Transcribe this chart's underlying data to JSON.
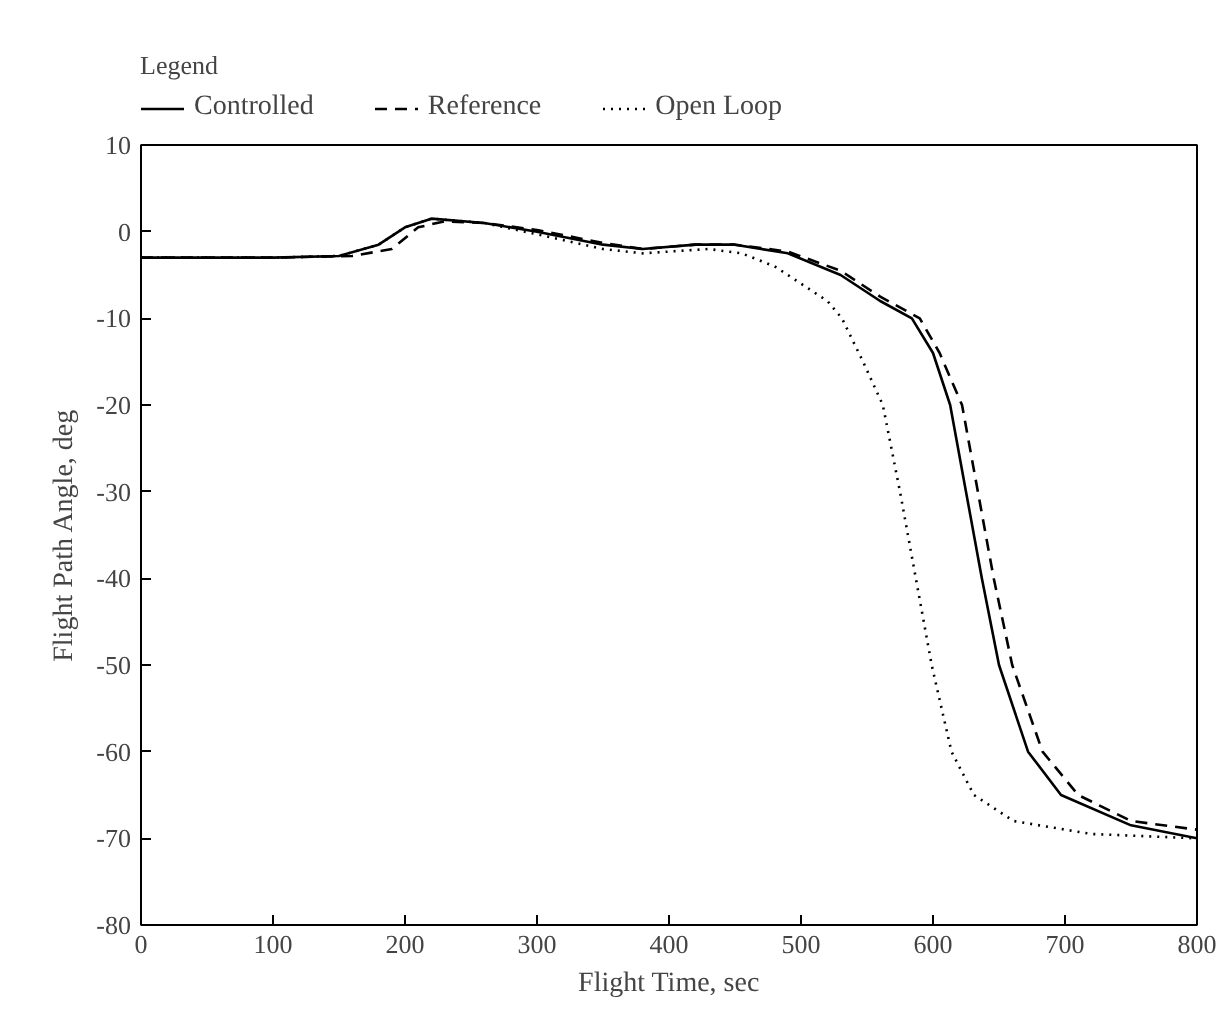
{
  "chart_data": {
    "type": "line",
    "xlabel": "Flight Time, sec",
    "ylabel": "Flight Path Angle, deg",
    "legend_title": "Legend",
    "legend": "top left",
    "xlim": [
      0,
      800
    ],
    "ylim": [
      -80,
      10
    ],
    "xticks": [
      0,
      100,
      200,
      300,
      400,
      500,
      600,
      700,
      800
    ],
    "yticks": [
      10,
      0,
      -10,
      -20,
      -30,
      -40,
      -50,
      -60,
      -70,
      -80
    ],
    "grid": false,
    "series": [
      {
        "name": "Controlled",
        "color": "#000000",
        "line_style": "solid",
        "x": [
          0,
          100,
          150,
          180,
          200,
          220,
          260,
          300,
          350,
          380,
          420,
          450,
          490,
          530,
          560,
          584,
          600,
          613,
          625,
          637,
          650,
          672,
          697,
          750,
          800
        ],
        "values": [
          -3,
          -3,
          -2.8,
          -1.5,
          0.5,
          1.5,
          1,
          0,
          -1.5,
          -2,
          -1.5,
          -1.5,
          -2.5,
          -5,
          -8,
          -10,
          -14,
          -20,
          -30,
          -40,
          -50,
          -60,
          -65,
          -68.5,
          -70
        ]
      },
      {
        "name": "Reference",
        "color": "#000000",
        "line_style": "dashed",
        "x": [
          0,
          100,
          160,
          190,
          210,
          230,
          260,
          300,
          350,
          380,
          420,
          450,
          490,
          530,
          560,
          590,
          605,
          622,
          634,
          646,
          660,
          683,
          710,
          750,
          800
        ],
        "values": [
          -3,
          -3,
          -2.8,
          -2,
          0.5,
          1.2,
          1,
          0.2,
          -1.3,
          -2,
          -1.5,
          -1.5,
          -2.3,
          -4.5,
          -7.5,
          -10,
          -14,
          -20,
          -30,
          -40,
          -50,
          -60,
          -65,
          -68,
          -69
        ]
      },
      {
        "name": "Open Loop",
        "color": "#000000",
        "line_style": "dotted",
        "x": [
          0,
          100,
          150,
          180,
          200,
          220,
          260,
          300,
          350,
          380,
          430,
          455,
          480,
          520,
          531,
          547,
          562,
          575,
          587,
          599,
          614,
          631,
          661,
          720,
          800
        ],
        "values": [
          -3,
          -3,
          -2.8,
          -1.5,
          0.5,
          1.5,
          1,
          -0.3,
          -2,
          -2.5,
          -2,
          -2.5,
          -4,
          -8,
          -10,
          -15,
          -20,
          -30,
          -40,
          -50,
          -60,
          -65,
          -68,
          -69.5,
          -70
        ]
      }
    ]
  }
}
